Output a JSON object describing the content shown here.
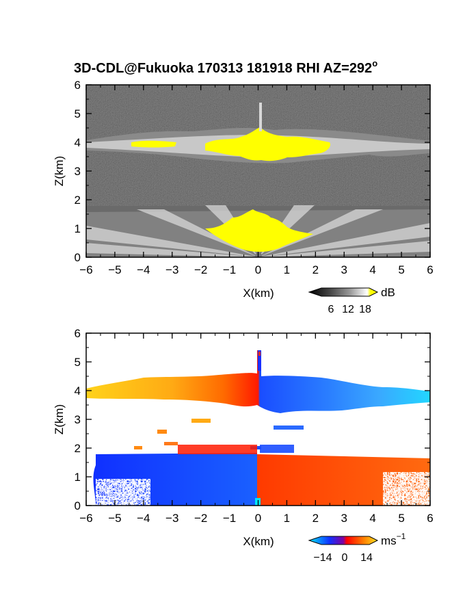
{
  "title": "3D-CDL@Fukuoka 170313 181918 RHI AZ=292°",
  "title_parts": {
    "main": "3D-CDL@Fukuoka 170313 181918 RHI AZ=292",
    "degree": "o"
  },
  "chart_data": [
    {
      "type": "heatmap",
      "variable": "reflectivity",
      "xlabel": "X(km)",
      "ylabel": "Z(km)",
      "xlim": [
        -6,
        6
      ],
      "ylim": [
        0,
        6
      ],
      "xticks": [
        -6,
        -5,
        -4,
        -3,
        -2,
        -1,
        0,
        1,
        2,
        3,
        4,
        5,
        6
      ],
      "yticks": [
        0,
        1,
        2,
        3,
        4,
        5,
        6
      ],
      "colorbar": {
        "unit": "dB",
        "ticks": [
          6,
          12,
          18
        ],
        "tick_labels": [
          "6",
          "12",
          "18"
        ],
        "colors": [
          "#000000",
          "#3a3a3a",
          "#7a7a7a",
          "#b8b8b8",
          "#ffffff",
          "#ffff00"
        ]
      },
      "features": [
        {
          "desc": "cloud layer",
          "x": [
            -6,
            6
          ],
          "z": [
            3.4,
            4.4
          ]
        },
        {
          "desc": "boundary layer echo",
          "x": [
            -6,
            6
          ],
          "z": [
            0,
            1.8
          ]
        }
      ]
    },
    {
      "type": "heatmap",
      "variable": "doppler velocity",
      "xlabel": "X(km)",
      "ylabel": "Z(km)",
      "xlim": [
        -6,
        6
      ],
      "ylim": [
        0,
        6
      ],
      "xticks": [
        -6,
        -5,
        -4,
        -3,
        -2,
        -1,
        0,
        1,
        2,
        3,
        4,
        5,
        6
      ],
      "yticks": [
        0,
        1,
        2,
        3,
        4,
        5,
        6
      ],
      "colorbar": {
        "unit": "ms",
        "unit_exponent": "−1",
        "ticks": [
          -14,
          0,
          14
        ],
        "tick_labels": [
          "−14",
          "0",
          "14"
        ],
        "colors": [
          "#00e5ff",
          "#0033ff",
          "#ff0000",
          "#ff6a00",
          "#ffd21a"
        ]
      },
      "features": [
        {
          "desc": "cloud layer",
          "x": [
            -6,
            6
          ],
          "z": [
            3.4,
            4.5
          ]
        },
        {
          "desc": "boundary layer flow",
          "x": [
            -6,
            6
          ],
          "z": [
            0,
            1.75
          ]
        }
      ]
    }
  ]
}
